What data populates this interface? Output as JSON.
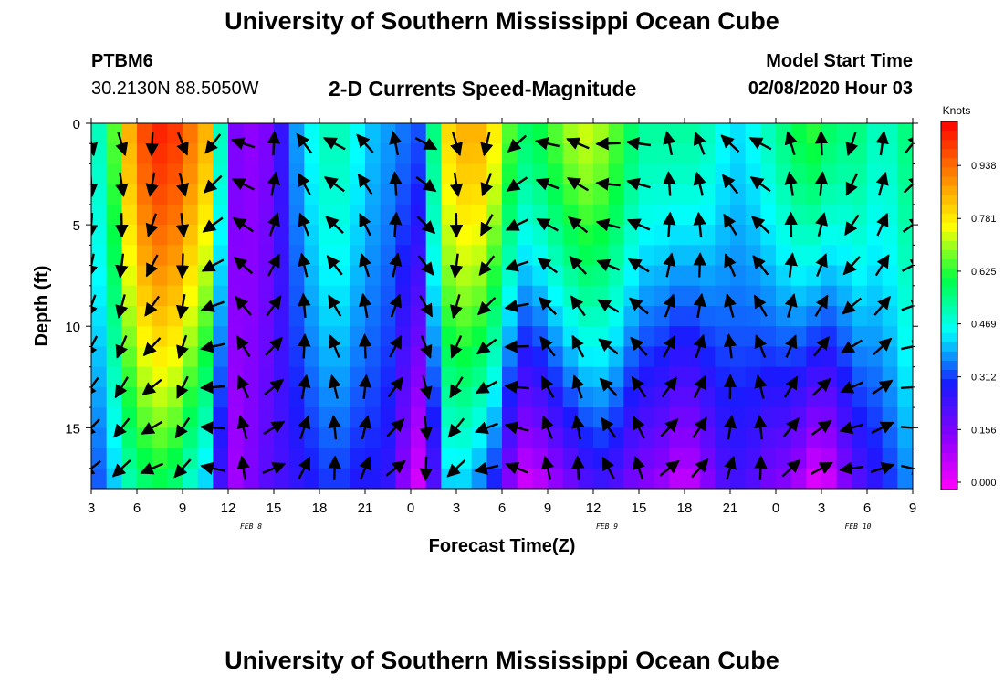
{
  "header": {
    "title": "University of Southern Mississippi Ocean Cube",
    "station_id": "PTBM6",
    "location": "30.2130N 88.5050W",
    "subtitle": "2-D Currents Speed-Magnitude",
    "model_start_label": "Model Start Time",
    "model_start_value": "02/08/2020 Hour 03"
  },
  "footer": {
    "title": "University of Southern Mississippi Ocean Cube"
  },
  "colors": {
    "scale": [
      "#ff00ff",
      "#8a00ff",
      "#1a1aff",
      "#00ffff",
      "#00ff44",
      "#ffff00",
      "#ff8000",
      "#ff0000"
    ]
  },
  "chart_data": {
    "type": "heatmap",
    "title": "2-D Currents Speed-Magnitude",
    "xlabel": "Forecast Time(Z)",
    "ylabel": "Depth (ft)",
    "units_label": "Knots",
    "x_tick_labels": [
      "3",
      "6",
      "9",
      "12",
      "15",
      "18",
      "21",
      "0",
      "3",
      "6",
      "9",
      "12",
      "15",
      "18",
      "21",
      "0",
      "3",
      "6",
      "9"
    ],
    "date_labels": [
      {
        "text": "FEB 8",
        "x_index": 3.5
      },
      {
        "text": "FEB 9",
        "x_index": 11.3
      },
      {
        "text": "FEB 10",
        "x_index": 16.8
      }
    ],
    "xlim": [
      0,
      54
    ],
    "ylim": [
      0,
      18
    ],
    "y_ticks": [
      "0",
      "5",
      "10",
      "15"
    ],
    "y_tick_values": [
      0,
      5,
      10,
      15
    ],
    "colorbar_ticks": [
      "0.000",
      "0.156",
      "0.312",
      "0.469",
      "0.625",
      "0.781",
      "0.938"
    ],
    "colorbar_values": [
      0.0,
      0.156,
      0.312,
      0.469,
      0.625,
      0.781,
      0.938
    ],
    "value_range": [
      0,
      1.09
    ],
    "speed_profile": {
      "hours": [
        0,
        1,
        2,
        3,
        4,
        5,
        6,
        7,
        8,
        9,
        10,
        11,
        12,
        13,
        14,
        15,
        16,
        17,
        18,
        19,
        20,
        21,
        22,
        23,
        24,
        25,
        26,
        27,
        28,
        29,
        30,
        31,
        32,
        33,
        34,
        35,
        36,
        37,
        38,
        39,
        40,
        41,
        42,
        43,
        44,
        45,
        46,
        47,
        48,
        49,
        50,
        51,
        52,
        53,
        54
      ],
      "surface_knots": [
        0.5,
        0.55,
        0.8,
        0.95,
        1.05,
        1.05,
        1.0,
        0.9,
        0.85,
        0.2,
        0.15,
        0.15,
        0.2,
        0.35,
        0.45,
        0.5,
        0.55,
        0.5,
        0.45,
        0.4,
        0.4,
        0.35,
        0.35,
        0.8,
        0.85,
        0.9,
        0.85,
        0.75,
        0.6,
        0.6,
        0.65,
        0.7,
        0.75,
        0.75,
        0.7,
        0.65,
        0.55,
        0.55,
        0.55,
        0.55,
        0.55,
        0.5,
        0.45,
        0.45,
        0.5,
        0.55,
        0.6,
        0.65,
        0.65,
        0.55,
        0.6,
        0.55,
        0.5,
        0.55,
        0.6
      ],
      "bottom_knots": [
        0.35,
        0.35,
        0.5,
        0.55,
        0.6,
        0.6,
        0.55,
        0.45,
        0.4,
        0.1,
        0.15,
        0.2,
        0.25,
        0.25,
        0.3,
        0.3,
        0.35,
        0.3,
        0.3,
        0.3,
        0.25,
        0.05,
        0.05,
        0.4,
        0.45,
        0.4,
        0.35,
        0.25,
        0.05,
        0.05,
        0.1,
        0.15,
        0.2,
        0.25,
        0.25,
        0.2,
        0.15,
        0.15,
        0.1,
        0.05,
        0.1,
        0.2,
        0.25,
        0.25,
        0.2,
        0.15,
        0.15,
        0.05,
        0.0,
        0.1,
        0.2,
        0.25,
        0.3,
        0.35,
        0.4
      ]
    }
  }
}
